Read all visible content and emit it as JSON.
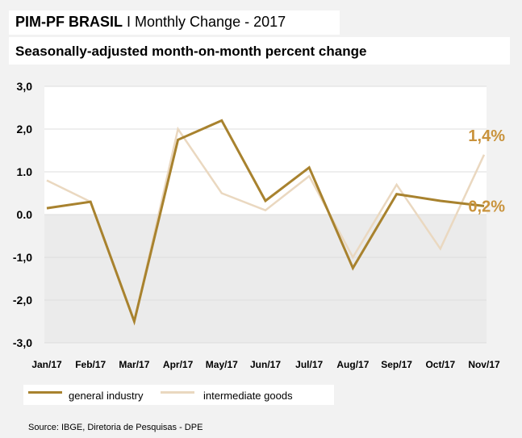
{
  "header": {
    "title_bold": "PIM-PF BRASIL",
    "title_rest": " I Monthly Change - 2017",
    "subtitle": "Seasonally-adjusted month-on-month percent change"
  },
  "chart_data": {
    "type": "line",
    "categories": [
      "Jan/17",
      "Feb/17",
      "Mar/17",
      "Apr/17",
      "May/17",
      "Jun/17",
      "Jul/17",
      "Aug/17",
      "Sep/17",
      "Oct/17",
      "Nov/17"
    ],
    "series": [
      {
        "name": "general industry",
        "color": "#a8822e",
        "values": [
          0.15,
          0.3,
          -2.5,
          1.75,
          2.2,
          0.32,
          1.1,
          -1.25,
          0.48,
          0.32,
          0.2
        ],
        "end_label": "0,2%"
      },
      {
        "name": "intermediate goods",
        "color": "#ead8c0",
        "values": [
          0.8,
          0.3,
          -2.5,
          2.0,
          0.5,
          0.1,
          0.9,
          -1.0,
          0.7,
          -0.8,
          1.4
        ],
        "end_label": "1,4%"
      }
    ],
    "y_ticks": [
      {
        "v": 3,
        "label": "3,0"
      },
      {
        "v": 2,
        "label": "2,0"
      },
      {
        "v": 1,
        "label": "1.0"
      },
      {
        "v": 0,
        "label": "0.0"
      },
      {
        "v": -1,
        "label": "-1,0"
      },
      {
        "v": -2,
        "label": "-2,0"
      },
      {
        "v": -3,
        "label": "-3,0"
      }
    ],
    "ylim": [
      -3,
      3
    ],
    "grid": true,
    "end_label_color": "#c9933c",
    "xlabel": "",
    "ylabel": ""
  },
  "legend": {
    "items": [
      {
        "label": "general industry",
        "color": "#a8822e"
      },
      {
        "label": "intermediate goods",
        "color": "#ead8c0"
      }
    ]
  },
  "footer": {
    "source": "Source: IBGE, Diretoria de Pesquisas - DPE"
  }
}
